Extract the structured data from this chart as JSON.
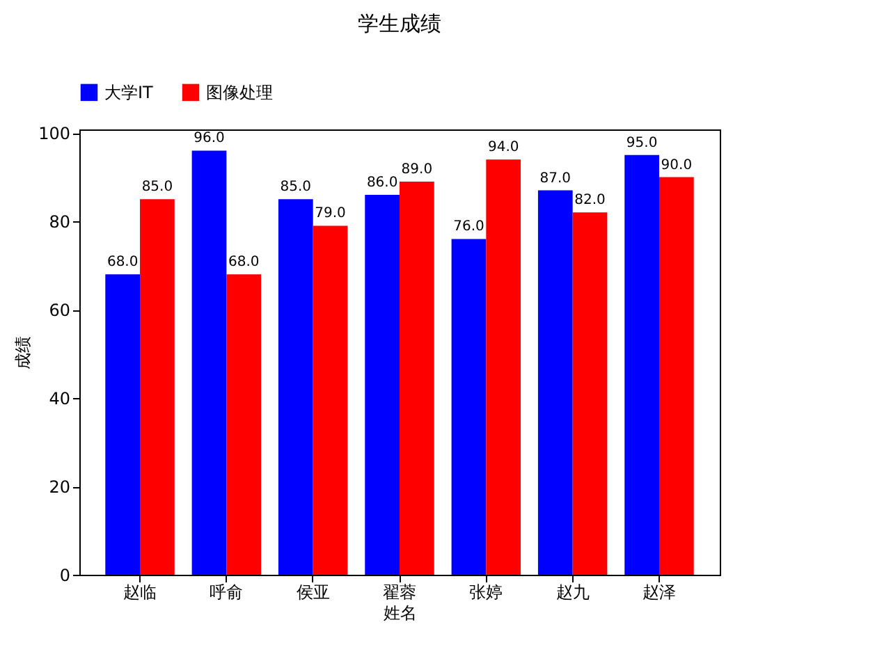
{
  "chart_data": {
    "type": "bar",
    "title": "学生成绩",
    "xlabel": "姓名",
    "ylabel": "成绩",
    "categories": [
      "赵临",
      "呼俞",
      "侯亚",
      "翟蓉",
      "张婷",
      "赵九",
      "赵泽"
    ],
    "series": [
      {
        "name": "大学IT",
        "color": "#0000ff",
        "values": [
          68,
          96,
          85,
          86,
          76,
          87,
          95
        ],
        "value_labels": [
          "68.0",
          "96.0",
          "85.0",
          "86.0",
          "76.0",
          "87.0",
          "95.0"
        ]
      },
      {
        "name": "图像处理",
        "color": "#ff0000",
        "values": [
          85,
          68,
          79,
          89,
          94,
          82,
          90
        ],
        "value_labels": [
          "85.0",
          "68.0",
          "79.0",
          "89.0",
          "94.0",
          "82.0",
          "90.0"
        ]
      }
    ],
    "ylim": [
      0,
      100.8
    ],
    "yticks": [
      0,
      20,
      40,
      60,
      80,
      100
    ],
    "grid": false,
    "legend": "top left"
  }
}
